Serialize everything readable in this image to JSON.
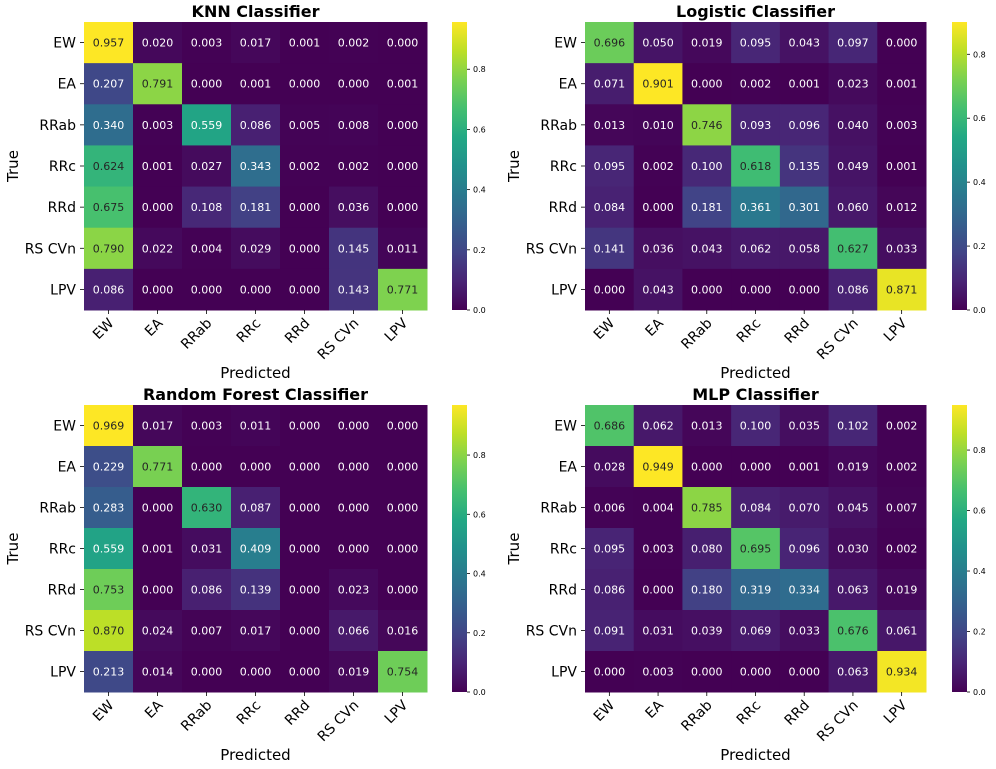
{
  "figure": {
    "colormap": "viridis"
  },
  "chart_data": [
    {
      "type": "heatmap",
      "title": "KNN Classifier",
      "xlabel": "Predicted",
      "ylabel": "True",
      "x_categories": [
        "EW",
        "EA",
        "RRab",
        "RRc",
        "RRd",
        "RS CVn",
        "LPV"
      ],
      "y_categories": [
        "EW",
        "EA",
        "RRab",
        "RRc",
        "RRd",
        "RS CVn",
        "LPV"
      ],
      "values": [
        [
          0.957,
          0.02,
          0.003,
          0.017,
          0.001,
          0.002,
          0.0
        ],
        [
          0.207,
          0.791,
          0.0,
          0.001,
          0.0,
          0.0,
          0.001
        ],
        [
          0.34,
          0.003,
          0.559,
          0.086,
          0.005,
          0.008,
          0.0
        ],
        [
          0.624,
          0.001,
          0.027,
          0.343,
          0.002,
          0.002,
          0.0
        ],
        [
          0.675,
          0.0,
          0.108,
          0.181,
          0.0,
          0.036,
          0.0
        ],
        [
          0.79,
          0.022,
          0.004,
          0.029,
          0.0,
          0.145,
          0.011
        ],
        [
          0.086,
          0.0,
          0.0,
          0.0,
          0.0,
          0.143,
          0.771
        ]
      ],
      "labels": [
        [
          "0.957",
          "0.020",
          "0.003",
          "0.017",
          "0.001",
          "0.002",
          "0.000"
        ],
        [
          "0.207",
          "0.791",
          "0.000",
          "0.001",
          "0.000",
          "0.000",
          "0.001"
        ],
        [
          "0.340",
          "0.003",
          "0.559",
          "0.086",
          "0.005",
          "0.008",
          "0.000"
        ],
        [
          "0.624",
          "0.001",
          "0.027",
          "0.343",
          "0.002",
          "0.002",
          "0.000"
        ],
        [
          "0.675",
          "0.000",
          "0.108",
          "0.181",
          "0.000",
          "0.036",
          "0.000"
        ],
        [
          "0.790",
          "0.022",
          "0.004",
          "0.029",
          "0.000",
          "0.145",
          "0.011"
        ],
        [
          "0.086",
          "0.000",
          "0.000",
          "0.000",
          "0.000",
          "0.143",
          "0.771"
        ]
      ],
      "colorbar": {
        "vmin": 0.0,
        "vmax": 0.957,
        "ticks": [
          0.0,
          0.2,
          0.4,
          0.6,
          0.8
        ],
        "tick_labels": [
          "0.0",
          "0.2",
          "0.4",
          "0.6",
          "0.8"
        ]
      }
    },
    {
      "type": "heatmap",
      "title": "Logistic Classifier",
      "xlabel": "Predicted",
      "ylabel": "True",
      "x_categories": [
        "EW",
        "EA",
        "RRab",
        "RRc",
        "RRd",
        "RS CVn",
        "LPV"
      ],
      "y_categories": [
        "EW",
        "EA",
        "RRab",
        "RRc",
        "RRd",
        "RS CVn",
        "LPV"
      ],
      "values": [
        [
          0.696,
          0.05,
          0.019,
          0.095,
          0.043,
          0.097,
          0.0
        ],
        [
          0.071,
          0.901,
          0.0,
          0.002,
          0.001,
          0.023,
          0.001
        ],
        [
          0.013,
          0.01,
          0.746,
          0.093,
          0.096,
          0.04,
          0.003
        ],
        [
          0.095,
          0.002,
          0.1,
          0.618,
          0.135,
          0.049,
          0.001
        ],
        [
          0.084,
          0.0,
          0.181,
          0.361,
          0.301,
          0.06,
          0.012
        ],
        [
          0.141,
          0.036,
          0.043,
          0.062,
          0.058,
          0.627,
          0.033
        ],
        [
          0.0,
          0.043,
          0.0,
          0.0,
          0.0,
          0.086,
          0.871
        ]
      ],
      "labels": [
        [
          "0.696",
          "0.050",
          "0.019",
          "0.095",
          "0.043",
          "0.097",
          "0.000"
        ],
        [
          "0.071",
          "0.901",
          "0.000",
          "0.002",
          "0.001",
          "0.023",
          "0.001"
        ],
        [
          "0.013",
          "0.010",
          "0.746",
          "0.093",
          "0.096",
          "0.040",
          "0.003"
        ],
        [
          "0.095",
          "0.002",
          "0.100",
          "0.618",
          "0.135",
          "0.049",
          "0.001"
        ],
        [
          "0.084",
          "0.000",
          "0.181",
          "0.361",
          "0.301",
          "0.060",
          "0.012"
        ],
        [
          "0.141",
          "0.036",
          "0.043",
          "0.062",
          "0.058",
          "0.627",
          "0.033"
        ],
        [
          "0.000",
          "0.043",
          "0.000",
          "0.000",
          "0.000",
          "0.086",
          "0.871"
        ]
      ],
      "colorbar": {
        "vmin": 0.0,
        "vmax": 0.901,
        "ticks": [
          0.0,
          0.2,
          0.4,
          0.6,
          0.8
        ],
        "tick_labels": [
          "0.0",
          "0.2",
          "0.4",
          "0.6",
          "0.8"
        ]
      }
    },
    {
      "type": "heatmap",
      "title": "Random Forest Classifier",
      "xlabel": "Predicted",
      "ylabel": "True",
      "x_categories": [
        "EW",
        "EA",
        "RRab",
        "RRc",
        "RRd",
        "RS CVn",
        "LPV"
      ],
      "y_categories": [
        "EW",
        "EA",
        "RRab",
        "RRc",
        "RRd",
        "RS CVn",
        "LPV"
      ],
      "values": [
        [
          0.969,
          0.017,
          0.003,
          0.011,
          0.0,
          0.0,
          0.0
        ],
        [
          0.229,
          0.771,
          0.0,
          0.0,
          0.0,
          0.0,
          0.0
        ],
        [
          0.283,
          0.0,
          0.63,
          0.087,
          0.0,
          0.0,
          0.0
        ],
        [
          0.559,
          0.001,
          0.031,
          0.409,
          0.0,
          0.0,
          0.0
        ],
        [
          0.753,
          0.0,
          0.086,
          0.139,
          0.0,
          0.023,
          0.0
        ],
        [
          0.87,
          0.024,
          0.007,
          0.017,
          0.0,
          0.066,
          0.016
        ],
        [
          0.213,
          0.014,
          0.0,
          0.0,
          0.0,
          0.019,
          0.754
        ]
      ],
      "labels": [
        [
          "0.969",
          "0.017",
          "0.003",
          "0.011",
          "0.000",
          "0.000",
          "0.000"
        ],
        [
          "0.229",
          "0.771",
          "0.000",
          "0.000",
          "0.000",
          "0.000",
          "0.000"
        ],
        [
          "0.283",
          "0.000",
          "0.630",
          "0.087",
          "0.000",
          "0.000",
          "0.000"
        ],
        [
          "0.559",
          "0.001",
          "0.031",
          "0.409",
          "0.000",
          "0.000",
          "0.000"
        ],
        [
          "0.753",
          "0.000",
          "0.086",
          "0.139",
          "0.000",
          "0.023",
          "0.000"
        ],
        [
          "0.870",
          "0.024",
          "0.007",
          "0.017",
          "0.000",
          "0.066",
          "0.016"
        ],
        [
          "0.213",
          "0.014",
          "0.000",
          "0.000",
          "0.000",
          "0.019",
          "0.754"
        ]
      ],
      "colorbar": {
        "vmin": 0.0,
        "vmax": 0.969,
        "ticks": [
          0.0,
          0.2,
          0.4,
          0.6,
          0.8
        ],
        "tick_labels": [
          "0.0",
          "0.2",
          "0.4",
          "0.6",
          "0.8"
        ]
      }
    },
    {
      "type": "heatmap",
      "title": "MLP Classifier",
      "xlabel": "Predicted",
      "ylabel": "True",
      "x_categories": [
        "EW",
        "EA",
        "RRab",
        "RRc",
        "RRd",
        "RS CVn",
        "LPV"
      ],
      "y_categories": [
        "EW",
        "EA",
        "RRab",
        "RRc",
        "RRd",
        "RS CVn",
        "LPV"
      ],
      "values": [
        [
          0.686,
          0.062,
          0.013,
          0.1,
          0.035,
          0.102,
          0.002
        ],
        [
          0.028,
          0.949,
          0.0,
          0.0,
          0.001,
          0.019,
          0.002
        ],
        [
          0.006,
          0.004,
          0.785,
          0.084,
          0.07,
          0.045,
          0.007
        ],
        [
          0.095,
          0.003,
          0.08,
          0.695,
          0.096,
          0.03,
          0.002
        ],
        [
          0.086,
          0.0,
          0.18,
          0.319,
          0.334,
          0.063,
          0.019
        ],
        [
          0.091,
          0.031,
          0.039,
          0.069,
          0.033,
          0.676,
          0.061
        ],
        [
          0.0,
          0.003,
          0.0,
          0.0,
          0.0,
          0.063,
          0.934
        ]
      ],
      "labels": [
        [
          "0.686",
          "0.062",
          "0.013",
          "0.100",
          "0.035",
          "0.102",
          "0.002"
        ],
        [
          "0.028",
          "0.949",
          "0.000",
          "0.000",
          "0.001",
          "0.019",
          "0.002"
        ],
        [
          "0.006",
          "0.004",
          "0.785",
          "0.084",
          "0.070",
          "0.045",
          "0.007"
        ],
        [
          "0.095",
          "0.003",
          "0.080",
          "0.695",
          "0.096",
          "0.030",
          "0.002"
        ],
        [
          "0.086",
          "0.000",
          "0.180",
          "0.319",
          "0.334",
          "0.063",
          "0.019"
        ],
        [
          "0.091",
          "0.031",
          "0.039",
          "0.069",
          "0.033",
          "0.676",
          "0.061"
        ],
        [
          "0.000",
          "0.003",
          "0.000",
          "0.000",
          "0.000",
          "0.063",
          "0.934"
        ]
      ],
      "colorbar": {
        "vmin": 0.0,
        "vmax": 0.949,
        "ticks": [
          0.0,
          0.2,
          0.4,
          0.6,
          0.8
        ],
        "tick_labels": [
          "0.0",
          "0.2",
          "0.4",
          "0.6",
          "0.8"
        ]
      }
    }
  ]
}
